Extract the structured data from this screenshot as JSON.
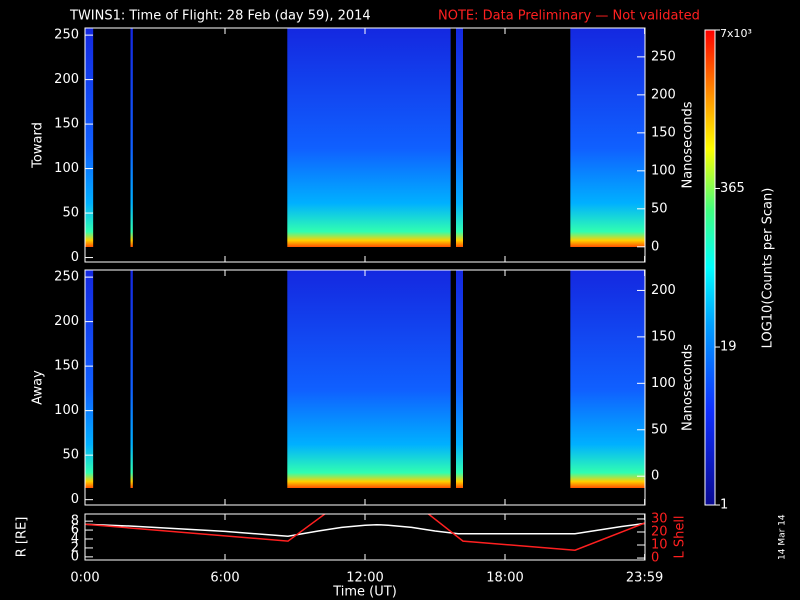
{
  "title": "TWINS1: Time of Flight: 28 Feb (day  59), 2014",
  "note": "NOTE: Data Preliminary — Not validated",
  "side_date": "14 Mar 14",
  "chart_data": [
    {
      "type": "spectrogram",
      "ylabel": "Toward",
      "y2label": "Nanoseconds",
      "ylim": [
        -5,
        258
      ],
      "yticks": [
        0,
        50,
        100,
        150,
        200,
        250
      ],
      "y2lim": [
        -20,
        288
      ],
      "y2ticks": [
        0,
        50,
        100,
        150,
        200,
        250
      ],
      "segments": [
        [
          0,
          0.35
        ],
        [
          1.95,
          2.05
        ],
        [
          8.67,
          15.67
        ],
        [
          15.9,
          16.2
        ],
        [
          20.8,
          24
        ]
      ]
    },
    {
      "type": "spectrogram",
      "ylabel": "Away",
      "y2label": "Nanoseconds",
      "ylim": [
        -6,
        258
      ],
      "yticks": [
        0,
        50,
        100,
        150,
        200,
        250
      ],
      "y2lim": [
        -31,
        222
      ],
      "y2ticks": [
        0,
        50,
        100,
        150,
        200
      ],
      "segments": [
        [
          0,
          0.35
        ],
        [
          1.95,
          2.05
        ],
        [
          8.67,
          15.67
        ],
        [
          15.9,
          16.2
        ],
        [
          20.8,
          24
        ]
      ]
    },
    {
      "type": "line",
      "ylabel": "R [RE]",
      "y2label": "L Shell",
      "xlabel": "Time (UT)",
      "xlim": [
        0,
        24
      ],
      "xticks": [
        {
          "value": 0,
          "label": "0:00"
        },
        {
          "value": 6,
          "label": "6:00"
        },
        {
          "value": 12,
          "label": "12:00"
        },
        {
          "value": 18,
          "label": "18:00"
        },
        {
          "value": 23.983,
          "label": "23:59"
        }
      ],
      "ylim": [
        -0.7,
        9.6
      ],
      "yticks": [
        0,
        2,
        4,
        6,
        8
      ],
      "y2lim": [
        -1.5,
        33.8
      ],
      "y2ticks": [
        0,
        10,
        20,
        30
      ],
      "series": [
        {
          "name": "R",
          "color": "#ffffff",
          "x": [
            0,
            2,
            4,
            6,
            8.7,
            10,
            11,
            12,
            12.5,
            13,
            14,
            15,
            16,
            18,
            21,
            22,
            23,
            24
          ],
          "values": [
            7.3,
            6.9,
            6.3,
            5.7,
            4.6,
            5.8,
            6.6,
            7.1,
            7.2,
            7.1,
            6.6,
            5.8,
            5.2,
            5.2,
            5.2,
            6.0,
            6.8,
            7.5
          ]
        },
        {
          "name": "L Shell",
          "color": "#ff2020",
          "axis": "y2",
          "x": [
            0,
            8.7,
            10.3,
            12.5,
            14.7,
            16.2,
            21,
            24
          ],
          "values": [
            26,
            13,
            34,
            null,
            34,
            13,
            6,
            27
          ]
        }
      ]
    },
    {
      "type": "colorbar",
      "label": "LOG10(Counts per Scan)",
      "log": true,
      "clim": [
        1,
        7000
      ],
      "ticks": [
        {
          "value": 7000,
          "label": "7x10³"
        },
        365,
        19,
        1
      ]
    }
  ]
}
